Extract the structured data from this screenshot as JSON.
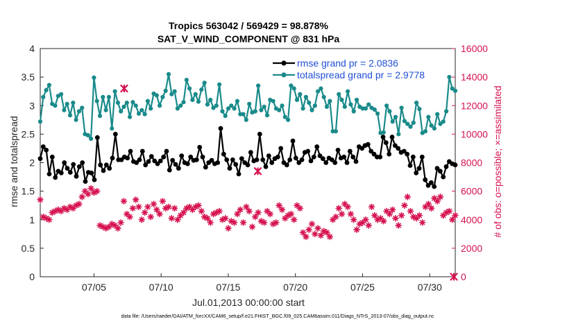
{
  "chart_data": {
    "type": "line",
    "title": "Tropics 563042 / 569429 = 98.878%",
    "subtitle": "SAT_V_WIND_COMPONENT @ 831 hPa",
    "xlabel": "Jul.01,2013 00:00:00 start",
    "ylabel": "rmse and totalspread",
    "ylabel_right": "# of obs: o=possible; ×=assimilated",
    "xlim": [
      1,
      31.9
    ],
    "ylim": [
      0,
      4
    ],
    "ylim_right": [
      0,
      16000
    ],
    "x_ticks": [
      5,
      10,
      15,
      20,
      25,
      30
    ],
    "x_tick_labels": [
      "07/05",
      "07/10",
      "07/15",
      "07/20",
      "07/25",
      "07/30"
    ],
    "y_ticks": [
      "0",
      "0.5",
      "1",
      "1.5",
      "2",
      "2.5",
      "3",
      "3.5",
      "4"
    ],
    "y_right_ticks": [
      "0",
      "2000",
      "4000",
      "6000",
      "8000",
      "10000",
      "12000",
      "14000",
      "16000"
    ],
    "legend_position": "top-right",
    "series": [
      {
        "name": "rmse grand pr = 2.0836",
        "color": "#000000",
        "axis": "left",
        "values": [
          2.07,
          2.28,
          2.22,
          1.8,
          2.1,
          1.74,
          1.85,
          1.82,
          2.0,
          1.9,
          1.83,
          1.97,
          1.76,
          1.93,
          2.0,
          1.67,
          1.83,
          1.82,
          1.7,
          2.44,
          1.96,
          1.86,
          1.96,
          1.9,
          2.08,
          2.5,
          2.05,
          2.05,
          2.1,
          2.08,
          2.2,
          2.02,
          2.0,
          2.05,
          2.2,
          1.96,
          2.02,
          2.11,
          2.03,
          1.98,
          2.03,
          2.1,
          2.2,
          1.87,
          2.04,
          1.97,
          1.9,
          2.12,
          2.0,
          1.98,
          2.1,
          2.04,
          2.05,
          2.27,
          2.1,
          1.92,
          2.0,
          2.04,
          1.98,
          2.0,
          2.6,
          2.15,
          2.05,
          1.9,
          2.05,
          1.97,
          1.8,
          2.07,
          2.0,
          1.96,
          2.18,
          2.03,
          2.05,
          2.5,
          2.05,
          1.93,
          2.12,
          2.0,
          2.07,
          2.1,
          2.25,
          2.0,
          1.96,
          2.05,
          2.38,
          2.08,
          2.0,
          2.05,
          2.18,
          2.2,
          2.03,
          2.1,
          2.28,
          2.12,
          2.07,
          2.0,
          2.08,
          2.05,
          2.0,
          2.22,
          2.08,
          2.1,
          2.0,
          2.2,
          2.1,
          2.02,
          2.28,
          2.25,
          2.3,
          2.32,
          2.2,
          2.15,
          2.1,
          2.1,
          2.45,
          2.35,
          2.15,
          2.45,
          2.3,
          2.25,
          2.18,
          2.2,
          2.15,
          1.95,
          2.1,
          1.82,
          1.9,
          2.1,
          1.7,
          1.6,
          1.65,
          1.58,
          1.9,
          1.85,
          1.75,
          1.93,
          2.02,
          1.98,
          1.96
        ]
      },
      {
        "name": "totalspread grand pr = 2.9778",
        "color": "#1a8a8a",
        "axis": "left",
        "values": [
          2.72,
          3.15,
          3.27,
          3.36,
          3.03,
          3.0,
          3.17,
          3.2,
          2.92,
          3.03,
          2.83,
          3.05,
          2.75,
          2.9,
          2.96,
          2.5,
          2.48,
          2.42,
          3.49,
          3.08,
          2.82,
          3.15,
          2.92,
          3.15,
          2.6,
          3.25,
          3.05,
          2.9,
          2.98,
          3.05,
          2.8,
          3.06,
          3.0,
          2.86,
          2.92,
          2.85,
          3.08,
          2.95,
          3.21,
          3.18,
          3.0,
          3.15,
          3.26,
          3.55,
          3.2,
          3.25,
          2.95,
          3.0,
          3.06,
          3.45,
          3.3,
          3.1,
          3.2,
          3.07,
          3.28,
          3.4,
          3.02,
          3.1,
          2.96,
          3.0,
          3.37,
          2.9,
          2.82,
          2.95,
          3.0,
          2.95,
          3.08,
          2.85,
          2.85,
          2.75,
          3.03,
          2.88,
          2.9,
          3.35,
          2.92,
          2.98,
          2.83,
          3.1,
          3.08,
          2.95,
          2.92,
          3.0,
          2.8,
          2.75,
          3.35,
          3.3,
          3.1,
          3.2,
          2.95,
          3.15,
          3.05,
          2.92,
          3.0,
          3.25,
          3.3,
          3.15,
          2.98,
          3.08,
          2.55,
          2.55,
          3.2,
          3.1,
          2.98,
          3.25,
          3.02,
          2.9,
          3.1,
          2.98,
          2.95,
          2.95,
          3.02,
          2.96,
          2.93,
          2.86,
          2.52,
          2.53,
          3.0,
          2.9,
          2.72,
          2.8,
          2.5,
          2.96,
          2.73,
          2.68,
          2.63,
          2.7,
          3.05,
          2.94,
          2.52,
          2.55,
          2.8,
          2.65,
          2.6,
          2.85,
          2.68,
          2.72,
          2.9,
          3.5,
          3.3,
          3.26
        ]
      },
      {
        "name": "# of obs",
        "color": "#d6124f",
        "axis": "right",
        "marker": "asterisk",
        "values": [
          5400,
          4200,
          4100,
          4000,
          4500,
          4600,
          4700,
          4600,
          4800,
          4700,
          4900,
          4800,
          5000,
          5100,
          5600,
          6000,
          5800,
          6200,
          5900,
          6000,
          3600,
          3500,
          3400,
          3500,
          3700,
          3600,
          3400,
          3800,
          5300,
          4400,
          4200,
          4800,
          5400,
          4900,
          4000,
          4500,
          4900,
          4200,
          5100,
          4700,
          4400,
          5300,
          4800,
          4900,
          4100,
          4800,
          4000,
          4300,
          4500,
          4800,
          4900,
          4700,
          4900,
          5000,
          4600,
          4200,
          4100,
          3800,
          4400,
          4500,
          4600,
          4000,
          4100,
          3400,
          3900,
          3800,
          4400,
          4700,
          3800,
          4900,
          4600,
          3500,
          4200,
          4500,
          3900,
          3800,
          4600,
          4400,
          3700,
          3800,
          5000,
          4700,
          4100,
          4300,
          4400,
          4000,
          5000,
          4800,
          3100,
          2800,
          3300,
          3700,
          3000,
          3400,
          2900,
          3200,
          3100,
          2800,
          4000,
          4200,
          4800,
          4400,
          5100,
          4900,
          4400,
          4000,
          3300,
          3700,
          3800,
          4000,
          3600,
          4900,
          4300,
          4000,
          4100,
          3900,
          4600,
          4400,
          4700,
          4100,
          3600,
          4300,
          5000,
          5600,
          4600,
          4200,
          4100,
          4300,
          3800,
          4900,
          5100,
          4800,
          5500,
          5300,
          5600,
          4300,
          4500,
          4600,
          4000,
          4300
        ]
      }
    ],
    "assimilated_points": [
      {
        "x": 7.25,
        "y_right": 13200
      },
      {
        "x": 17.2,
        "y_right": 7400
      },
      {
        "x": 31.8,
        "y_right": 0
      }
    ],
    "legend": [
      "rmse grand pr = 2.0836",
      "totalspread grand pr = 2.9778"
    ]
  },
  "footer": "data file: /Users/raeder/DAI/ATM_forcXX/CAM6_setup/f.e21.FHIST_BGC.f09_025.CAM6assim.011/Diags_NTrS_2013-07/obs_diag_output.nc"
}
